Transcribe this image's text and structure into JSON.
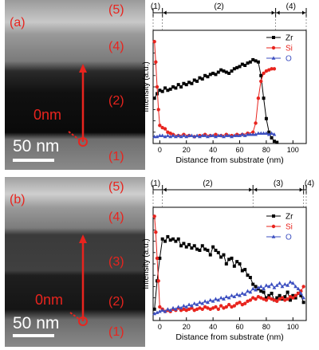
{
  "colors": {
    "zr": "#000000",
    "si": "#e8241e",
    "o": "#3c4fc0",
    "annotation": "#e8241e",
    "scale": "#ffffff"
  },
  "panels": [
    {
      "label": "(a)",
      "layer_labels": [
        "(5)",
        "(4)",
        "(2)",
        "(1)"
      ],
      "zero_label": "0nm",
      "scale_label": "50 nm",
      "region_labels": [
        "(1)",
        "(2)",
        "(4)"
      ]
    },
    {
      "label": "(b)",
      "layer_labels": [
        "(5)",
        "(4)",
        "(3)",
        "(2)",
        "(1)"
      ],
      "zero_label": "0nm",
      "scale_label": "50 nm",
      "region_labels": [
        "(1)",
        "(2)",
        "(3)",
        "(4)"
      ]
    }
  ],
  "chart_data": [
    {
      "type": "line",
      "xlabel": "Distance from substrate (nm)",
      "ylabel": "Intensity (a.u.)",
      "xlim": [
        -5,
        110
      ],
      "ylim": [
        0,
        100
      ],
      "xticks": [
        0,
        20,
        40,
        60,
        80,
        100
      ],
      "region_bounds": [
        -5,
        2,
        87,
        110
      ],
      "legend": "top-right",
      "series": [
        {
          "name": "Zr",
          "x": [
            -4,
            -2,
            0,
            2,
            4,
            6,
            8,
            10,
            12,
            14,
            16,
            18,
            20,
            22,
            24,
            26,
            28,
            30,
            32,
            34,
            36,
            38,
            40,
            42,
            44,
            46,
            48,
            50,
            52,
            54,
            56,
            58,
            60,
            62,
            64,
            66,
            68,
            70,
            72,
            74,
            76,
            78,
            80,
            82,
            84,
            86,
            88
          ],
          "y": [
            40,
            44,
            47,
            46,
            49,
            47,
            48,
            50,
            49,
            52,
            50,
            53,
            52,
            54,
            53,
            56,
            55,
            58,
            57,
            60,
            59,
            61,
            62,
            61,
            63,
            65,
            64,
            63,
            62,
            64,
            66,
            67,
            68,
            70,
            69,
            71,
            72,
            74,
            73,
            72,
            60,
            40,
            22,
            10,
            5,
            2,
            1
          ]
        },
        {
          "name": "Si",
          "x": [
            -4,
            -3,
            -2,
            -1,
            0,
            2,
            4,
            6,
            8,
            10,
            14,
            18,
            22,
            26,
            30,
            34,
            38,
            42,
            46,
            50,
            54,
            58,
            62,
            66,
            70,
            72,
            74,
            76,
            78,
            80,
            82,
            84,
            86
          ],
          "y": [
            90,
            72,
            50,
            30,
            16,
            14,
            13,
            10,
            9,
            8,
            7,
            8,
            7,
            6,
            7,
            8,
            7,
            8,
            7,
            8,
            7,
            8,
            8,
            9,
            10,
            18,
            40,
            55,
            62,
            64,
            65,
            66,
            66
          ]
        },
        {
          "name": "O",
          "x": [
            -4,
            -2,
            0,
            2,
            4,
            6,
            8,
            10,
            12,
            14,
            16,
            18,
            20,
            22,
            24,
            26,
            28,
            30,
            32,
            34,
            36,
            38,
            40,
            42,
            44,
            46,
            48,
            50,
            52,
            54,
            56,
            58,
            60,
            62,
            64,
            66,
            68,
            70,
            72,
            74,
            76,
            78,
            80,
            82,
            84,
            86
          ],
          "y": [
            6,
            6,
            7,
            7,
            6,
            7,
            6,
            7,
            6,
            7,
            6,
            7,
            6,
            7,
            7,
            6,
            7,
            6,
            7,
            7,
            6,
            7,
            7,
            6,
            7,
            7,
            6,
            7,
            7,
            6,
            7,
            7,
            7,
            8,
            7,
            8,
            8,
            8,
            8,
            9,
            9,
            9,
            9,
            8,
            9,
            8
          ]
        }
      ]
    },
    {
      "type": "line",
      "xlabel": "Distance from substrate (nm)",
      "ylabel": "Intensity (a.u.)",
      "xlim": [
        -5,
        110
      ],
      "ylim": [
        0,
        100
      ],
      "xticks": [
        0,
        20,
        40,
        60,
        80,
        100
      ],
      "region_bounds": [
        -5,
        2,
        70,
        108,
        110
      ],
      "legend": "top-right",
      "series": [
        {
          "name": "Zr",
          "x": [
            -4,
            -2,
            0,
            2,
            4,
            6,
            8,
            10,
            12,
            14,
            16,
            18,
            20,
            22,
            24,
            26,
            28,
            30,
            32,
            34,
            36,
            38,
            40,
            42,
            44,
            46,
            48,
            50,
            52,
            54,
            56,
            58,
            60,
            62,
            64,
            66,
            68,
            70,
            72,
            74,
            76,
            78,
            80,
            82,
            84,
            86,
            88,
            90,
            92,
            94,
            96,
            98,
            100,
            102,
            104,
            106,
            108
          ],
          "y": [
            10,
            35,
            55,
            72,
            70,
            74,
            71,
            72,
            70,
            72,
            66,
            68,
            65,
            67,
            64,
            66,
            63,
            62,
            66,
            63,
            62,
            58,
            65,
            62,
            60,
            56,
            58,
            50,
            54,
            55,
            48,
            52,
            50,
            44,
            45,
            40,
            38,
            32,
            30,
            28,
            26,
            25,
            20,
            22,
            24,
            18,
            20,
            22,
            19,
            21,
            25,
            18,
            22,
            20,
            24,
            22,
            16
          ]
        },
        {
          "name": "Si",
          "x": [
            -4,
            -3,
            -2,
            -1,
            0,
            2,
            4,
            6,
            8,
            10,
            12,
            14,
            16,
            18,
            20,
            22,
            24,
            26,
            28,
            30,
            32,
            34,
            36,
            38,
            40,
            42,
            44,
            46,
            48,
            50,
            52,
            54,
            56,
            58,
            60,
            62,
            64,
            66,
            68,
            70,
            72,
            74,
            76,
            78,
            80,
            82,
            84,
            86,
            88,
            90,
            92,
            94,
            96,
            98,
            100,
            102,
            104,
            106,
            108
          ],
          "y": [
            92,
            78,
            55,
            35,
            12,
            10,
            8,
            9,
            8,
            10,
            9,
            11,
            9,
            10,
            9,
            10,
            11,
            9,
            10,
            11,
            10,
            12,
            11,
            10,
            11,
            12,
            10,
            13,
            11,
            12,
            14,
            12,
            13,
            15,
            16,
            14,
            15,
            17,
            18,
            20,
            19,
            21,
            20,
            19,
            18,
            20,
            19,
            18,
            17,
            19,
            20,
            18,
            19,
            21,
            20,
            22,
            24,
            26,
            30
          ]
        },
        {
          "name": "O",
          "x": [
            -4,
            -2,
            0,
            2,
            4,
            6,
            8,
            10,
            12,
            14,
            16,
            18,
            20,
            22,
            24,
            26,
            28,
            30,
            32,
            34,
            36,
            38,
            40,
            42,
            44,
            46,
            48,
            50,
            52,
            54,
            56,
            58,
            60,
            62,
            64,
            66,
            68,
            70,
            72,
            74,
            76,
            78,
            80,
            82,
            84,
            86,
            88,
            90,
            92,
            94,
            96,
            98,
            100,
            102,
            104,
            106,
            108
          ],
          "y": [
            6,
            7,
            8,
            9,
            8,
            10,
            9,
            11,
            10,
            12,
            11,
            13,
            12,
            14,
            13,
            15,
            14,
            16,
            15,
            17,
            16,
            18,
            17,
            19,
            18,
            20,
            19,
            21,
            20,
            22,
            21,
            23,
            22,
            24,
            23,
            26,
            25,
            28,
            27,
            29,
            30,
            28,
            31,
            30,
            32,
            29,
            31,
            33,
            30,
            32,
            31,
            34,
            33,
            30,
            28,
            24,
            20
          ]
        }
      ]
    }
  ]
}
